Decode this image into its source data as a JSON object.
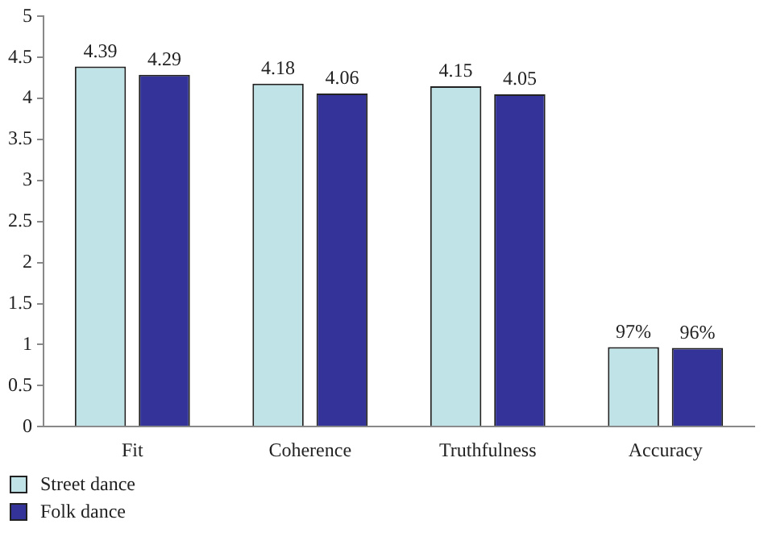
{
  "chart_data": {
    "type": "bar",
    "categories": [
      "Fit",
      "Coherence",
      "Truthfulness",
      "Accuracy"
    ],
    "series": [
      {
        "name": "Street dance",
        "color": "#bfe3e6",
        "values": [
          4.39,
          4.18,
          4.15,
          0.97
        ],
        "value_labels": [
          "4.39",
          "4.18",
          "4.15",
          "97%"
        ]
      },
      {
        "name": "Folk dance",
        "color": "#333399",
        "values": [
          4.29,
          4.06,
          4.05,
          0.96
        ],
        "value_labels": [
          "4.29",
          "4.06",
          "4.05",
          "96%"
        ]
      }
    ],
    "ylim": [
      0,
      5
    ],
    "yticks": [
      0,
      0.5,
      1,
      1.5,
      2,
      2.5,
      3,
      3.5,
      4,
      4.5,
      5
    ],
    "grid": false,
    "legend": "bottom left"
  }
}
